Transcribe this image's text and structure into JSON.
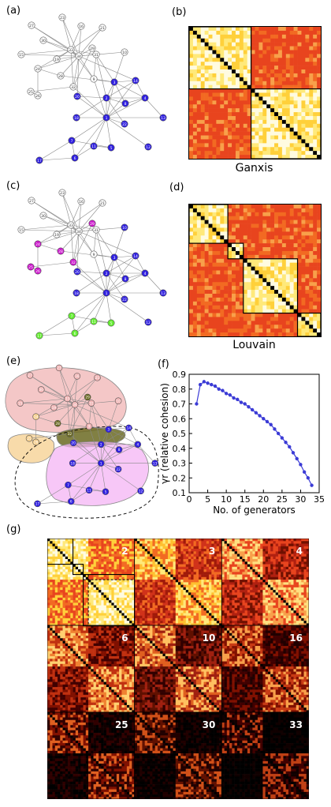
{
  "panels": {
    "a": "(a)",
    "b": "(b)",
    "c": "(c)",
    "d": "(d)",
    "e": "(e)",
    "f": "(f)",
    "g": "(g)"
  },
  "captions": {
    "b": "Ganxis",
    "d": "Louvain"
  },
  "network_labels": [
    "1",
    "2",
    "3",
    "4",
    "5",
    "6",
    "7",
    "8",
    "9",
    "10",
    "11",
    "12",
    "13",
    "14",
    "15",
    "16",
    "17",
    "18",
    "19",
    "20",
    "21",
    "22",
    "23",
    "24",
    "25",
    "26",
    "27",
    "28",
    "29",
    "30",
    "31",
    "32",
    "33",
    "34"
  ],
  "g_labels": [
    "2",
    "3",
    "4",
    "6",
    "10",
    "16",
    "25",
    "30",
    "33"
  ],
  "colors": {
    "blue": "#2f1fe0",
    "magenta": "#cc16cc",
    "green": "#66ee33",
    "red_region": "#f0b4b4",
    "orange_region": "#f6cf8e",
    "olive_region": "#6b6a22",
    "pink_region": "#f4b4f4"
  },
  "chart_data": {
    "type": "line",
    "xlabel": "No. of generators",
    "ylabel": "γr (relative cohesion)",
    "xlim": [
      0,
      35
    ],
    "ylim": [
      0.1,
      0.9
    ],
    "xticks": [
      "0",
      "5",
      "10",
      "15",
      "20",
      "25",
      "30",
      "35"
    ],
    "yticks": [
      "0.1",
      "0.2",
      "0.3",
      "0.4",
      "0.5",
      "0.6",
      "0.7",
      "0.8",
      "0.9"
    ],
    "x": [
      2,
      3,
      4,
      5,
      6,
      7,
      8,
      9,
      10,
      11,
      12,
      13,
      14,
      15,
      16,
      17,
      18,
      19,
      20,
      21,
      22,
      23,
      24,
      25,
      26,
      27,
      28,
      29,
      30,
      31,
      32,
      33
    ],
    "y": [
      0.7,
      0.83,
      0.85,
      0.84,
      0.83,
      0.82,
      0.8,
      0.79,
      0.77,
      0.76,
      0.74,
      0.73,
      0.71,
      0.7,
      0.68,
      0.66,
      0.64,
      0.62,
      0.6,
      0.58,
      0.56,
      0.53,
      0.5,
      0.47,
      0.44,
      0.41,
      0.37,
      0.33,
      0.29,
      0.24,
      0.2,
      0.15
    ]
  }
}
